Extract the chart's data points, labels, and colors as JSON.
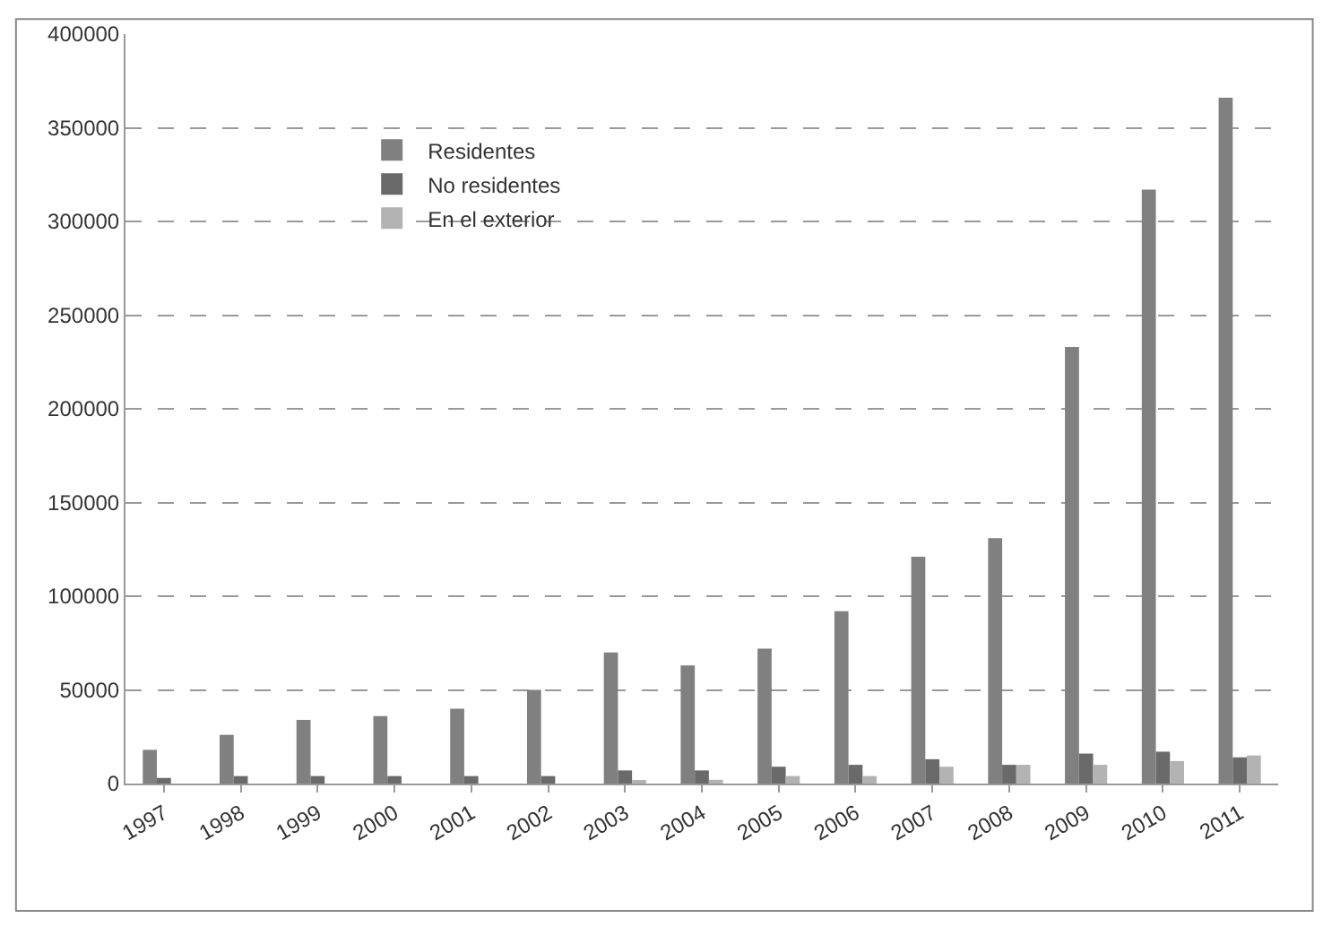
{
  "chart_data": {
    "type": "bar",
    "categories": [
      "1997",
      "1998",
      "1999",
      "2000",
      "2001",
      "2002",
      "2003",
      "2004",
      "2005",
      "2006",
      "2007",
      "2008",
      "2009",
      "2010",
      "2011"
    ],
    "series": [
      {
        "name": "Residentes",
        "color": "#808080",
        "values": [
          18000,
          26000,
          34000,
          36000,
          40000,
          50000,
          70000,
          63000,
          72000,
          92000,
          121000,
          131000,
          233000,
          317000,
          366000
        ]
      },
      {
        "name": "No residentes",
        "color": "#6a6a6a",
        "values": [
          3000,
          4000,
          4000,
          4000,
          4000,
          4000,
          7000,
          7000,
          9000,
          10000,
          13000,
          10000,
          16000,
          17000,
          14000
        ]
      },
      {
        "name": "En el exterior",
        "color": "#b3b3b3",
        "values": [
          null,
          null,
          null,
          null,
          null,
          null,
          1000,
          2000,
          4000,
          4000,
          9000,
          10000,
          10000,
          12000,
          15000
        ]
      }
    ],
    "ylim": [
      0,
      400000
    ],
    "yticks": [
      0,
      50000,
      100000,
      150000,
      200000,
      250000,
      300000,
      350000,
      400000
    ],
    "grid": "y",
    "legend": "top left"
  }
}
